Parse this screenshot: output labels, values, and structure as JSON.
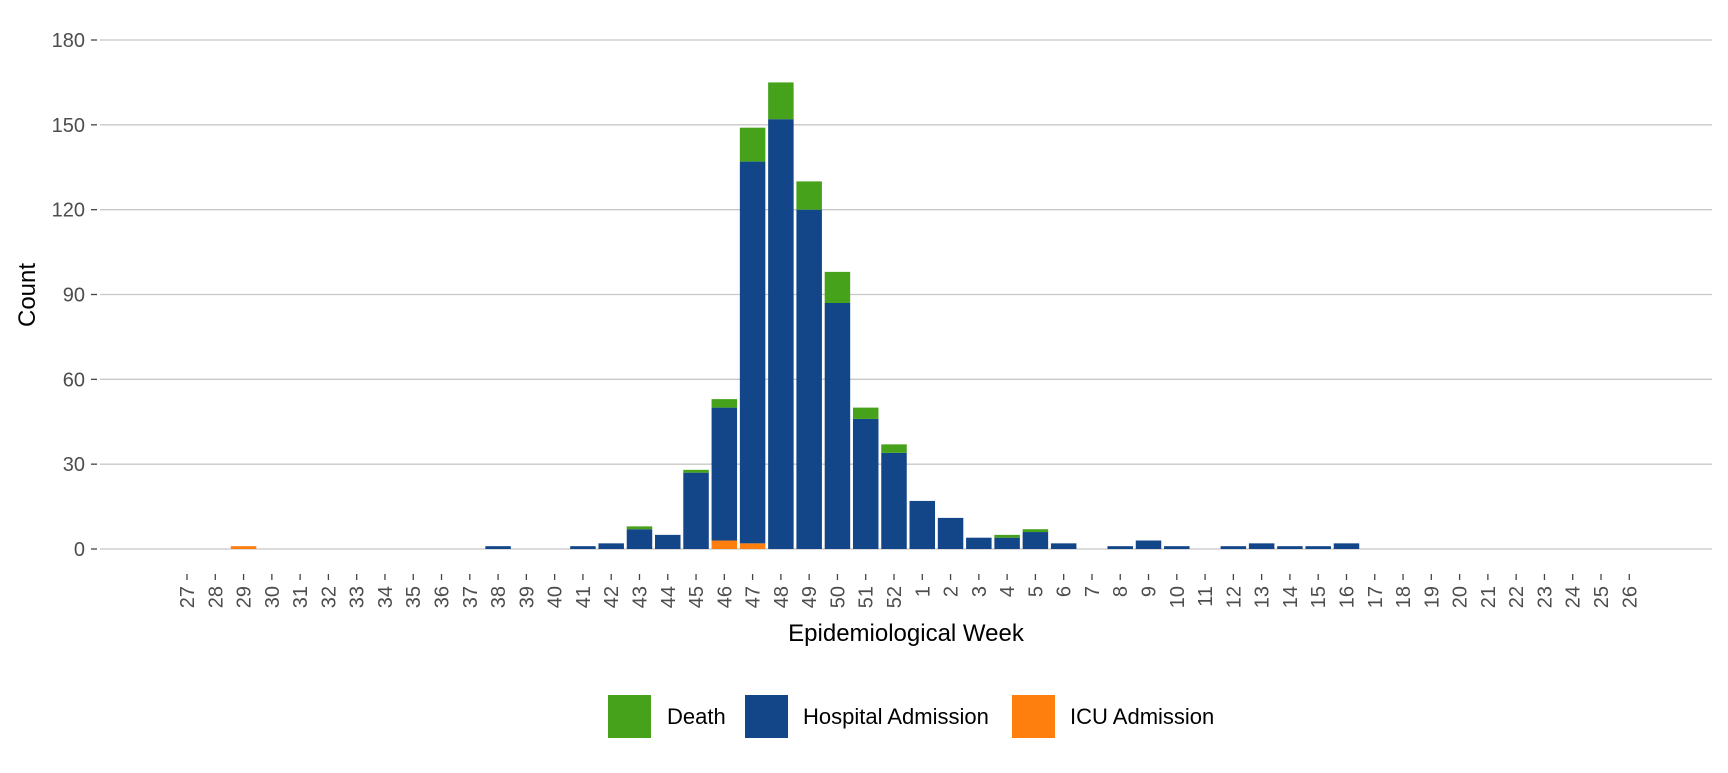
{
  "chart_data": {
    "type": "bar",
    "stacked": true,
    "categories": [
      "27",
      "28",
      "29",
      "30",
      "31",
      "32",
      "33",
      "34",
      "35",
      "36",
      "37",
      "38",
      "39",
      "40",
      "41",
      "42",
      "43",
      "44",
      "45",
      "46",
      "47",
      "48",
      "49",
      "50",
      "51",
      "52",
      "1",
      "2",
      "3",
      "4",
      "5",
      "6",
      "7",
      "8",
      "9",
      "10",
      "11",
      "12",
      "13",
      "14",
      "15",
      "16",
      "17",
      "18",
      "19",
      "20",
      "21",
      "22",
      "23",
      "24",
      "25",
      "26"
    ],
    "series": [
      {
        "name": "ICU Admission",
        "color": "#ff7f0e",
        "values": [
          0,
          0,
          1,
          0,
          0,
          0,
          0,
          0,
          0,
          0,
          0,
          0,
          0,
          0,
          0,
          0,
          0,
          0,
          0,
          3,
          2,
          0,
          0,
          0,
          0,
          0,
          0,
          0,
          0,
          0,
          0,
          0,
          0,
          0,
          0,
          0,
          0,
          0,
          0,
          0,
          0,
          0,
          0,
          0,
          0,
          0,
          0,
          0,
          0,
          0,
          0,
          0
        ]
      },
      {
        "name": "Hospital Admission",
        "color": "#134689",
        "values": [
          0,
          0,
          0,
          0,
          0,
          0,
          0,
          0,
          0,
          0,
          0,
          1,
          0,
          0,
          1,
          2,
          7,
          5,
          27,
          47,
          135,
          152,
          120,
          87,
          46,
          34,
          17,
          11,
          4,
          4,
          6,
          2,
          0,
          1,
          3,
          1,
          0,
          1,
          2,
          1,
          1,
          2,
          0,
          0,
          0,
          0,
          0,
          0,
          0,
          0,
          0,
          0
        ]
      },
      {
        "name": "Death",
        "color": "#45a21a",
        "values": [
          0,
          0,
          0,
          0,
          0,
          0,
          0,
          0,
          0,
          0,
          0,
          0,
          0,
          0,
          0,
          0,
          1,
          0,
          1,
          3,
          12,
          13,
          10,
          11,
          4,
          3,
          0,
          0,
          0,
          1,
          1,
          0,
          0,
          0,
          0,
          0,
          0,
          0,
          0,
          0,
          0,
          0,
          0,
          0,
          0,
          0,
          0,
          0,
          0,
          0,
          0,
          0
        ]
      }
    ],
    "xlabel": "Epidemiological Week",
    "ylabel": "Count",
    "ylim": [
      0,
      180
    ],
    "yticks": [
      0,
      30,
      60,
      90,
      120,
      150,
      180
    ],
    "grid": "horizontal",
    "legend": {
      "position": "bottom",
      "entries": [
        {
          "label": "Death",
          "color": "#45a21a"
        },
        {
          "label": "Hospital Admission",
          "color": "#134689"
        },
        {
          "label": "ICU Admission",
          "color": "#ff7f0e"
        }
      ]
    }
  }
}
